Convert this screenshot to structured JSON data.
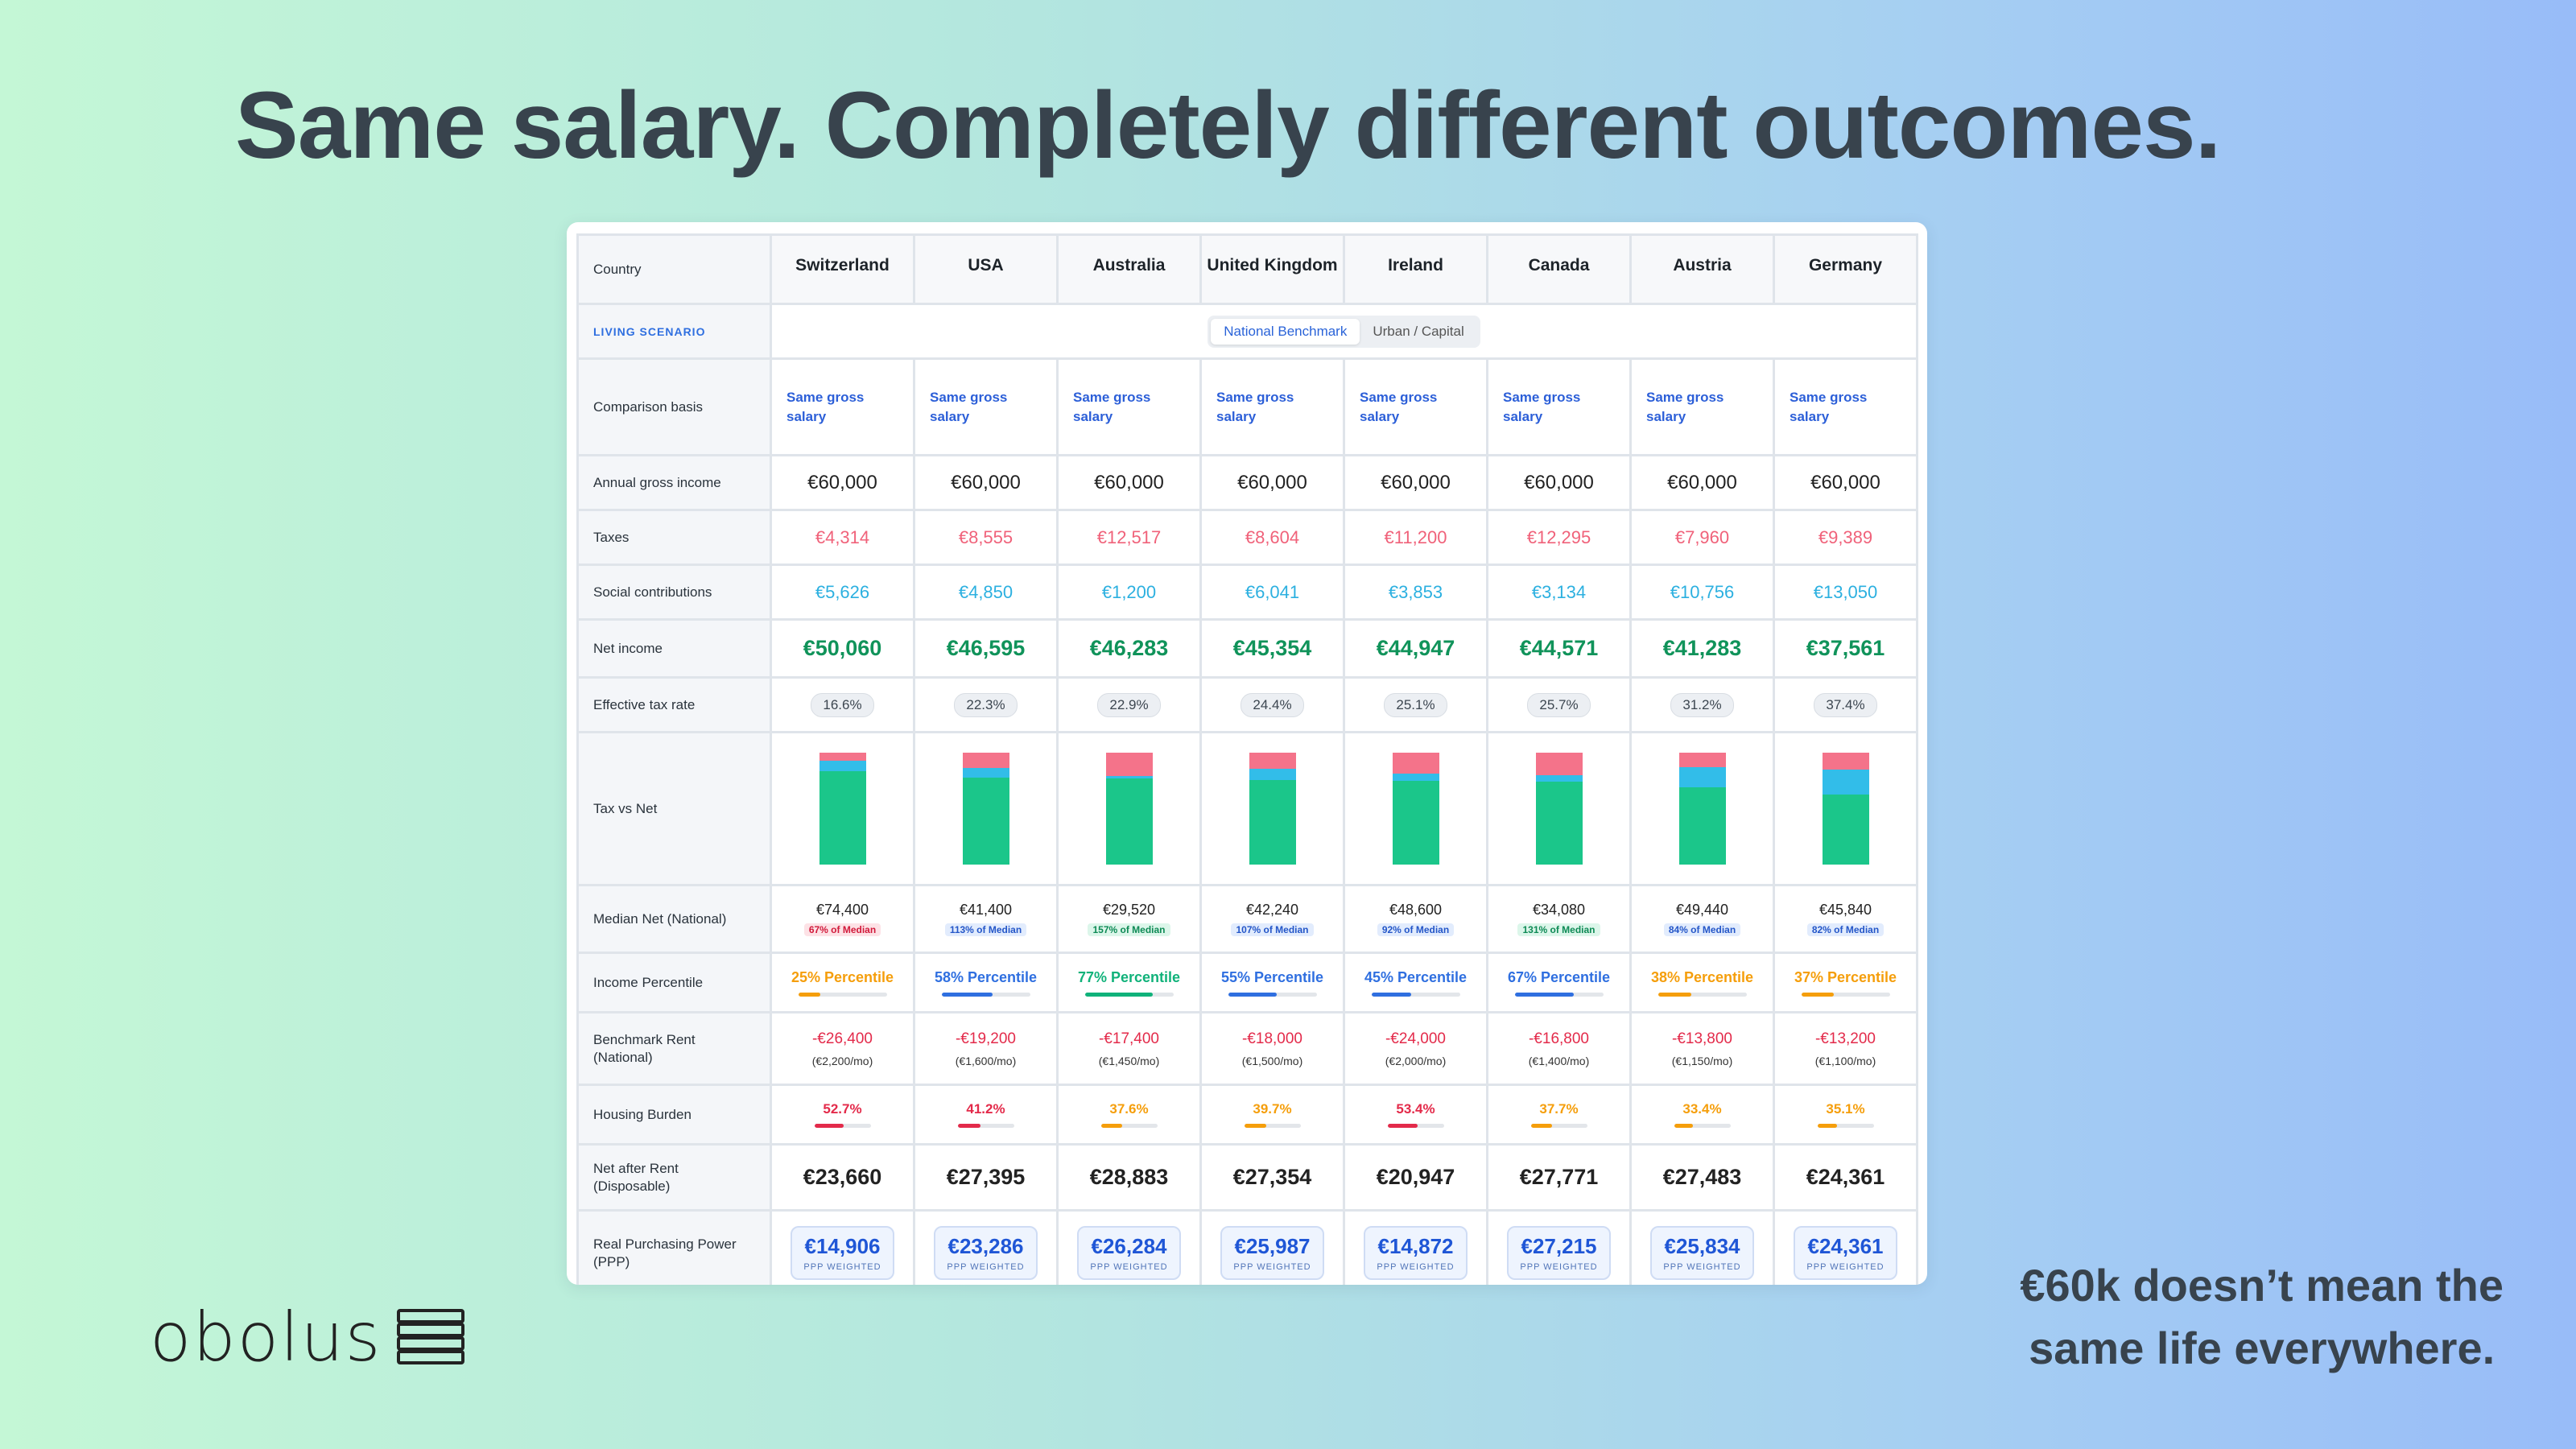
{
  "headline": "Same salary. Completely different outcomes.",
  "tagline_lines": [
    "€60k doesn’t mean the",
    "same life everywhere."
  ],
  "logo_text": "obolus",
  "colors": {
    "tax": "#f4738a",
    "social": "#32bde9",
    "net": "#1bc68a",
    "blue": "#2f6fe0",
    "orange": "#f59e0b",
    "green": "#10b27a",
    "red": "#e32a4a"
  },
  "labels": {
    "country": "Country",
    "scenario": "LIVING SCENARIO",
    "basis": "Comparison basis",
    "gross": "Annual gross income",
    "taxes": "Taxes",
    "social": "Social contributions",
    "net": "Net income",
    "eff": "Effective tax rate",
    "chart": "Tax vs Net",
    "median": "Median Net (National)",
    "percentile": "Income Percentile",
    "rent": "Benchmark Rent (National)",
    "burden": "Housing Burden",
    "after": "Net after Rent (Disposable)",
    "ppp": "Real Purchasing Power (PPP)"
  },
  "scenario_toggle": {
    "active": "National Benchmark",
    "other": "Urban / Capital"
  },
  "countries": [
    {
      "name": "Switzerland",
      "basis": "Same gross salary",
      "gross": "€60,000",
      "tax": "€4,314",
      "social": "€5,626",
      "net": "€50,060",
      "eff": "16.6%",
      "tax_v": 4314,
      "social_v": 5626,
      "net_v": 50060,
      "median": "€74,400",
      "median_badge": "67% of Median",
      "badge_tone": "red",
      "pct": "25% Percentile",
      "pct_v": 25,
      "pct_tone": "orange",
      "rent": "-€26,400",
      "rent_mo": "(€2,200/mo)",
      "burden": "52.7%",
      "burden_v": 52.7,
      "burden_tone": "red",
      "after": "€23,660",
      "ppp": "€14,906",
      "ppp_label": "PPP WEIGHTED"
    },
    {
      "name": "USA",
      "basis": "Same gross salary",
      "gross": "€60,000",
      "tax": "€8,555",
      "social": "€4,850",
      "net": "€46,595",
      "eff": "22.3%",
      "tax_v": 8555,
      "social_v": 4850,
      "net_v": 46595,
      "median": "€41,400",
      "median_badge": "113% of Median",
      "badge_tone": "blue",
      "pct": "58% Percentile",
      "pct_v": 58,
      "pct_tone": "blue",
      "rent": "-€19,200",
      "rent_mo": "(€1,600/mo)",
      "burden": "41.2%",
      "burden_v": 41.2,
      "burden_tone": "red",
      "after": "€27,395",
      "ppp": "€23,286",
      "ppp_label": "PPP WEIGHTED"
    },
    {
      "name": "Australia",
      "basis": "Same gross salary",
      "gross": "€60,000",
      "tax": "€12,517",
      "social": "€1,200",
      "net": "€46,283",
      "eff": "22.9%",
      "tax_v": 12517,
      "social_v": 1200,
      "net_v": 46283,
      "median": "€29,520",
      "median_badge": "157% of Median",
      "badge_tone": "green",
      "pct": "77% Percentile",
      "pct_v": 77,
      "pct_tone": "green",
      "rent": "-€17,400",
      "rent_mo": "(€1,450/mo)",
      "burden": "37.6%",
      "burden_v": 37.6,
      "burden_tone": "orange",
      "after": "€28,883",
      "ppp": "€26,284",
      "ppp_label": "PPP WEIGHTED"
    },
    {
      "name": "United Kingdom",
      "basis": "Same gross salary",
      "gross": "€60,000",
      "tax": "€8,604",
      "social": "€6,041",
      "net": "€45,354",
      "eff": "24.4%",
      "tax_v": 8604,
      "social_v": 6041,
      "net_v": 45354,
      "median": "€42,240",
      "median_badge": "107% of Median",
      "badge_tone": "blue",
      "pct": "55% Percentile",
      "pct_v": 55,
      "pct_tone": "blue",
      "rent": "-€18,000",
      "rent_mo": "(€1,500/mo)",
      "burden": "39.7%",
      "burden_v": 39.7,
      "burden_tone": "orange",
      "after": "€27,354",
      "ppp": "€25,987",
      "ppp_label": "PPP WEIGHTED"
    },
    {
      "name": "Ireland",
      "basis": "Same gross salary",
      "gross": "€60,000",
      "tax": "€11,200",
      "social": "€3,853",
      "net": "€44,947",
      "eff": "25.1%",
      "tax_v": 11200,
      "social_v": 3853,
      "net_v": 44947,
      "median": "€48,600",
      "median_badge": "92% of Median",
      "badge_tone": "blue",
      "pct": "45% Percentile",
      "pct_v": 45,
      "pct_tone": "blue",
      "rent": "-€24,000",
      "rent_mo": "(€2,000/mo)",
      "burden": "53.4%",
      "burden_v": 53.4,
      "burden_tone": "red",
      "after": "€20,947",
      "ppp": "€14,872",
      "ppp_label": "PPP WEIGHTED"
    },
    {
      "name": "Canada",
      "basis": "Same gross salary",
      "gross": "€60,000",
      "tax": "€12,295",
      "social": "€3,134",
      "net": "€44,571",
      "eff": "25.7%",
      "tax_v": 12295,
      "social_v": 3134,
      "net_v": 44571,
      "median": "€34,080",
      "median_badge": "131% of Median",
      "badge_tone": "green",
      "pct": "67% Percentile",
      "pct_v": 67,
      "pct_tone": "blue",
      "rent": "-€16,800",
      "rent_mo": "(€1,400/mo)",
      "burden": "37.7%",
      "burden_v": 37.7,
      "burden_tone": "orange",
      "after": "€27,771",
      "ppp": "€27,215",
      "ppp_label": "PPP WEIGHTED"
    },
    {
      "name": "Austria",
      "basis": "Same gross salary",
      "gross": "€60,000",
      "tax": "€7,960",
      "social": "€10,756",
      "net": "€41,283",
      "eff": "31.2%",
      "tax_v": 7960,
      "social_v": 10756,
      "net_v": 41283,
      "median": "€49,440",
      "median_badge": "84% of Median",
      "badge_tone": "blue",
      "pct": "38% Percentile",
      "pct_v": 38,
      "pct_tone": "orange",
      "rent": "-€13,800",
      "rent_mo": "(€1,150/mo)",
      "burden": "33.4%",
      "burden_v": 33.4,
      "burden_tone": "orange",
      "after": "€27,483",
      "ppp": "€25,834",
      "ppp_label": "PPP WEIGHTED"
    },
    {
      "name": "Germany",
      "basis": "Same gross salary",
      "gross": "€60,000",
      "tax": "€9,389",
      "social": "€13,050",
      "net": "€37,561",
      "eff": "37.4%",
      "tax_v": 9389,
      "social_v": 13050,
      "net_v": 37561,
      "median": "€45,840",
      "median_badge": "82% of Median",
      "badge_tone": "blue",
      "pct": "37% Percentile",
      "pct_v": 37,
      "pct_tone": "orange",
      "rent": "-€13,200",
      "rent_mo": "(€1,100/mo)",
      "burden": "35.1%",
      "burden_v": 35.1,
      "burden_tone": "orange",
      "after": "€24,361",
      "ppp": "€24,361",
      "ppp_label": "PPP WEIGHTED"
    }
  ]
}
